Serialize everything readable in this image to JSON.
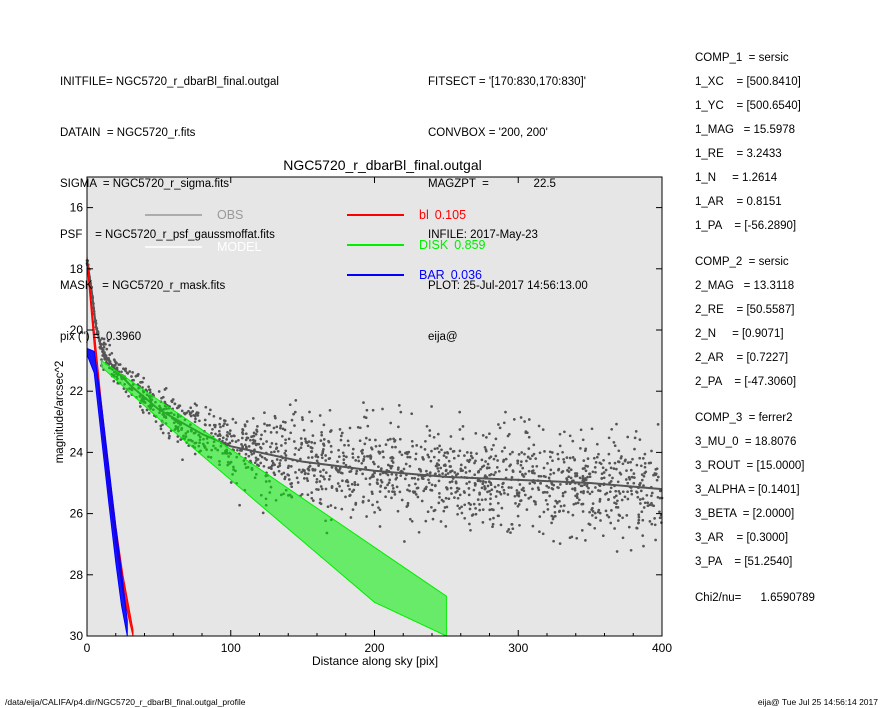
{
  "header": {
    "left": [
      "INITFILE= NGC5720_r_dbarBl_final.outgal",
      "DATAIN  = NGC5720_r.fits",
      "SIGMA  = NGC5720_r_sigma.fits",
      "PSF    = NGC5720_r_psf_gaussmoffat.fits",
      "MASK   = NGC5720_r_mask.fits",
      "pix (\") =  0.3960"
    ],
    "middle": [
      "FITSECT = '[170:830,170:830]'",
      "CONVBOX = '200, 200'",
      "MAGZPT  =              22.5",
      "INFILE: 2017-May-23",
      "PLOT: 25-Jul-2017 14:56:13.00",
      "eija@"
    ]
  },
  "params": [
    "COMP_1  = sersic",
    "1_XC    = [500.8410]",
    "1_YC    = [500.6540]",
    "1_MAG   = 15.5978",
    "1_RE    = 3.2433",
    "1_N     = 1.2614",
    "1_AR    = 0.8151",
    "1_PA    = [-56.2890]",
    "",
    "COMP_2  = sersic",
    "2_MAG   = 13.3118",
    "2_RE    = [50.5587]",
    "2_N     = [0.9071]",
    "2_AR    = [0.7227]",
    "2_PA    = [-47.3060]",
    "",
    "COMP_3  = ferrer2",
    "3_MU_0  = 18.8076",
    "3_ROUT  = [15.0000]",
    "3_ALPHA = [0.1401]",
    "3_BETA  = [2.0000]",
    "3_AR    = [0.3000]",
    "3_PA    = [51.2540]",
    "",
    "Chi2/nu=      1.6590789"
  ],
  "footer": {
    "left": "/data/eija/CALIFA/p4.dir/NGC5720_r_dbarBl_final.outgal_profile",
    "right": "eija@  Tue Jul 25 14:56:14 2017"
  },
  "colors": {
    "plot_bg": "#e6e6e6",
    "obs": "#555555",
    "obs_legend": "#999999",
    "model": "#ffffff",
    "bulge": "#ff0000",
    "disk": "#00ee00",
    "bar": "#0000ff"
  },
  "chart_data": {
    "type": "scatter",
    "title": "NGC5720_r_dbarBl_final.outgal",
    "xlabel": "Distance along sky [pix]",
    "ylabel": "magnitude/arcsec^2",
    "xlim": [
      0,
      400
    ],
    "ylim": [
      30,
      15
    ],
    "xticks": [
      0,
      100,
      200,
      300,
      400
    ],
    "yticks": [
      16,
      18,
      20,
      22,
      24,
      26,
      28,
      30
    ],
    "legend": [
      {
        "label": "OBS",
        "value": "",
        "color": "#999999"
      },
      {
        "label": "MODEL",
        "value": "",
        "color": "#ffffff"
      },
      {
        "label": "bl",
        "value": "0.105",
        "color": "#ff0000"
      },
      {
        "label": "DISK",
        "value": "0.859",
        "color": "#00ee00"
      },
      {
        "label": "BAR",
        "value": "0.036",
        "color": "#0000ff"
      }
    ],
    "series": [
      {
        "name": "OBS",
        "kind": "points",
        "x": [
          0,
          3,
          6,
          10,
          15,
          20,
          30,
          50,
          80,
          100,
          150,
          200,
          250,
          300,
          350,
          400
        ],
        "y": [
          17.7,
          18.6,
          19.8,
          20.6,
          21.0,
          21.3,
          21.8,
          22.6,
          23.4,
          23.8,
          24.3,
          24.6,
          24.8,
          24.9,
          25.0,
          25.2
        ]
      },
      {
        "name": "DISK",
        "kind": "band",
        "x": [
          10,
          50,
          100,
          150,
          200,
          250
        ],
        "y_low": [
          21.2,
          22.9,
          24.9,
          26.9,
          28.9,
          30.0
        ],
        "y_high": [
          21.0,
          22.3,
          23.9,
          25.5,
          27.1,
          28.7
        ]
      },
      {
        "name": "bl",
        "kind": "band",
        "x": [
          0,
          5,
          10,
          15,
          20,
          25,
          32
        ],
        "y_low": [
          17.8,
          20.5,
          23.0,
          25.2,
          27.0,
          28.6,
          30.0
        ],
        "y_high": [
          17.6,
          20.0,
          22.4,
          24.5,
          26.4,
          28.0,
          29.8
        ]
      },
      {
        "name": "BAR",
        "kind": "band",
        "x": [
          0,
          5,
          10,
          15,
          20,
          24,
          28
        ],
        "y_low": [
          20.8,
          21.4,
          23.5,
          25.6,
          27.6,
          29.0,
          30.0
        ],
        "y_high": [
          20.6,
          20.7,
          22.4,
          24.4,
          26.4,
          27.9,
          29.5
        ]
      }
    ]
  }
}
